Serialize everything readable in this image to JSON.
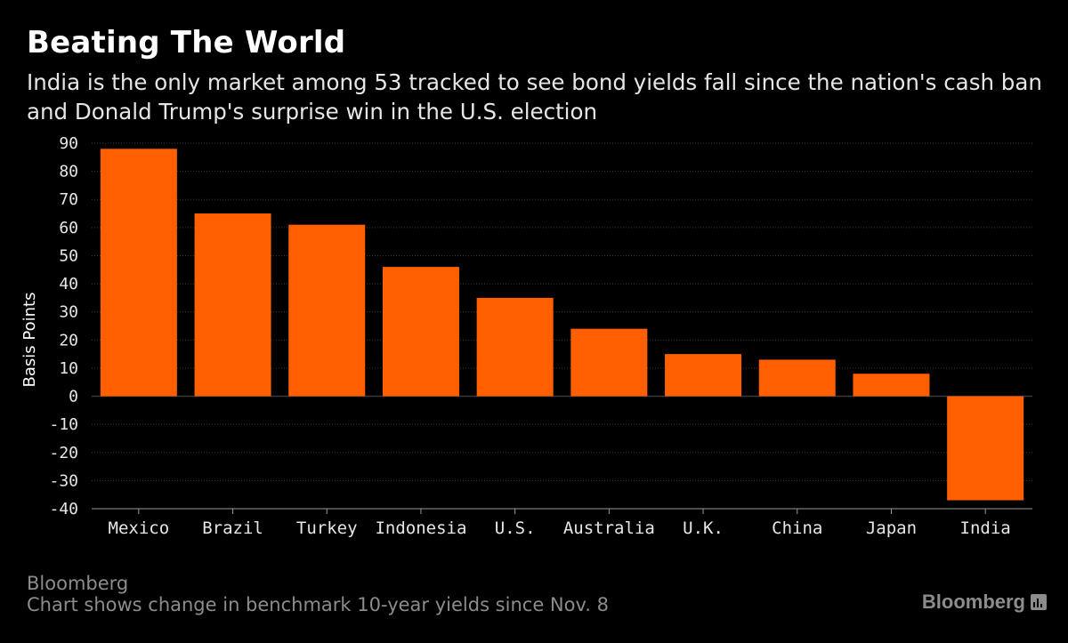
{
  "header": {
    "title": "Beating The World",
    "subtitle": "India is the only market among 53 tracked to see bond yields fall since the nation's cash ban and Donald Trump's surprise win in the U.S. election"
  },
  "footer": {
    "source": "Bloomberg",
    "note": "Chart shows change in benchmark 10-year yields since Nov. 8",
    "brand": "Bloomberg"
  },
  "colors": {
    "bar": "#ff5f00",
    "grid": "#3a3a3a",
    "background": "#000000"
  },
  "chart_data": {
    "type": "bar",
    "title": "Beating The World",
    "ylabel": "Basis Points",
    "xlabel": "",
    "categories": [
      "Mexico",
      "Brazil",
      "Turkey",
      "Indonesia",
      "U.S.",
      "Australia",
      "U.K.",
      "China",
      "Japan",
      "India"
    ],
    "values": [
      88,
      65,
      61,
      46,
      35,
      24,
      15,
      13,
      8,
      -37
    ],
    "ylim": [
      -40,
      90
    ],
    "yticks": [
      90,
      80,
      70,
      60,
      50,
      40,
      30,
      20,
      10,
      0,
      -10,
      -20,
      -30,
      -40
    ],
    "grid": true,
    "gridlines": "horizontal dotted"
  }
}
